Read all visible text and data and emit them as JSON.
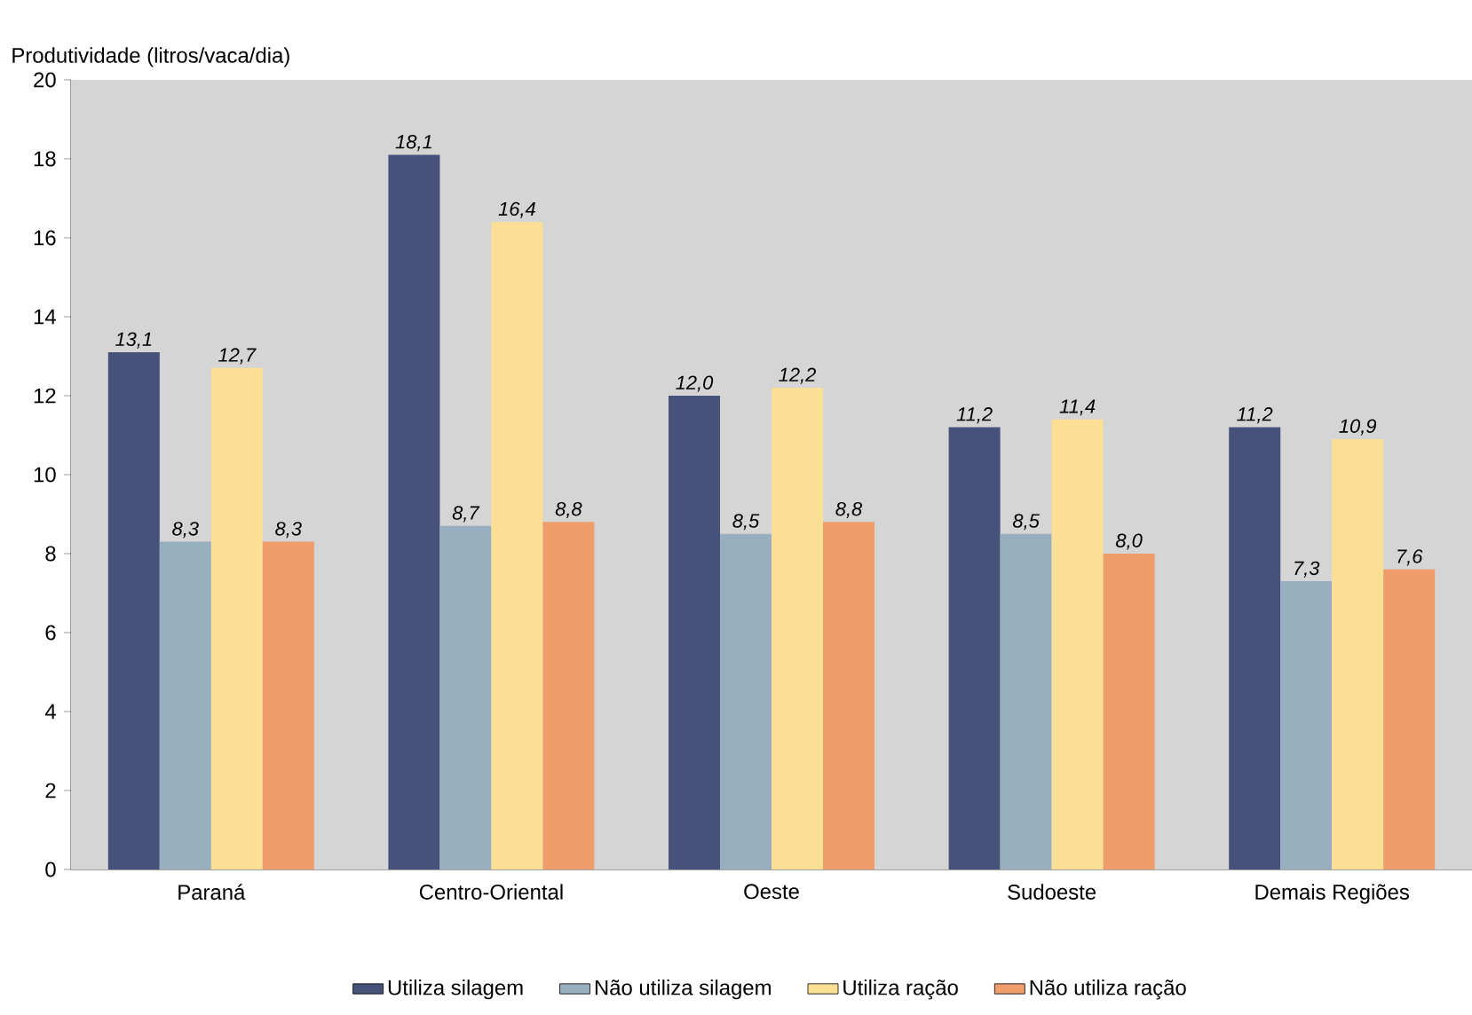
{
  "chart_data": {
    "type": "bar",
    "ylabel": "Produtividade (litros/vaca/dia)",
    "categories": [
      "Paraná",
      "Centro-Oriental",
      "Oeste",
      "Sudoeste",
      "Demais Regiões"
    ],
    "series": [
      {
        "name": "Utiliza silagem",
        "color": "#46527a",
        "values": [
          13.1,
          18.1,
          12.0,
          11.2,
          11.2
        ],
        "value_labels": [
          "13,1",
          "18,1",
          "12,0",
          "11,2",
          "11,2"
        ]
      },
      {
        "name": "Não utiliza silagem",
        "color": "#98afc0",
        "values": [
          8.3,
          8.7,
          8.5,
          8.5,
          7.3
        ],
        "value_labels": [
          "8,3",
          "8,7",
          "8,5",
          "8,5",
          "7,3"
        ]
      },
      {
        "name": "Utiliza ração",
        "color": "#fadf94",
        "values": [
          12.7,
          16.4,
          12.2,
          11.4,
          10.9
        ],
        "value_labels": [
          "12,7",
          "16,4",
          "12,2",
          "11,4",
          "10,9"
        ]
      },
      {
        "name": "Não utiliza ração",
        "color": "#ef9d6a",
        "values": [
          8.3,
          8.8,
          8.8,
          8.0,
          7.6
        ],
        "value_labels": [
          "8,3",
          "8,8",
          "8,8",
          "8,0",
          "7,6"
        ]
      }
    ],
    "ylim": [
      0,
      20
    ],
    "yticks": [
      0,
      2,
      4,
      6,
      8,
      10,
      12,
      14,
      16,
      18,
      20
    ],
    "legend": "bottom"
  }
}
